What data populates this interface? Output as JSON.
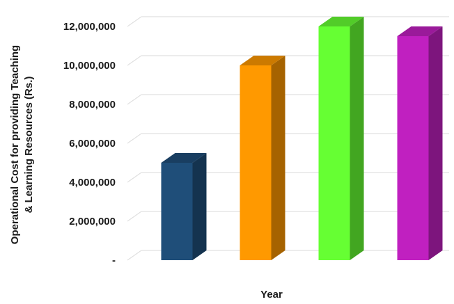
{
  "chart_data": {
    "type": "bar",
    "categories": [
      "",
      "",
      "",
      ""
    ],
    "values": [
      5000000,
      10000000,
      12000000,
      11500000
    ],
    "colors": [
      "#1f4e79",
      "#ff9900",
      "#66ff33",
      "#c020c0"
    ],
    "title": "",
    "xlabel": "Year",
    "ylabel": "Operational Cost for providing Teaching & Learning Resources (Rs.)",
    "ylabel_lines": [
      "Operational Cost for providing Teaching",
      "& Learning Resources (Rs.)"
    ],
    "ylim": [
      0,
      12000000
    ],
    "yticks": [
      0,
      2000000,
      4000000,
      6000000,
      8000000,
      10000000,
      12000000
    ],
    "ytick_labels": [
      "-",
      "2,000,000",
      "4,000,000",
      "6,000,000",
      "8,000,000",
      "10,000,000",
      "12,000,000"
    ],
    "grid": true,
    "style": "3d-bars"
  }
}
